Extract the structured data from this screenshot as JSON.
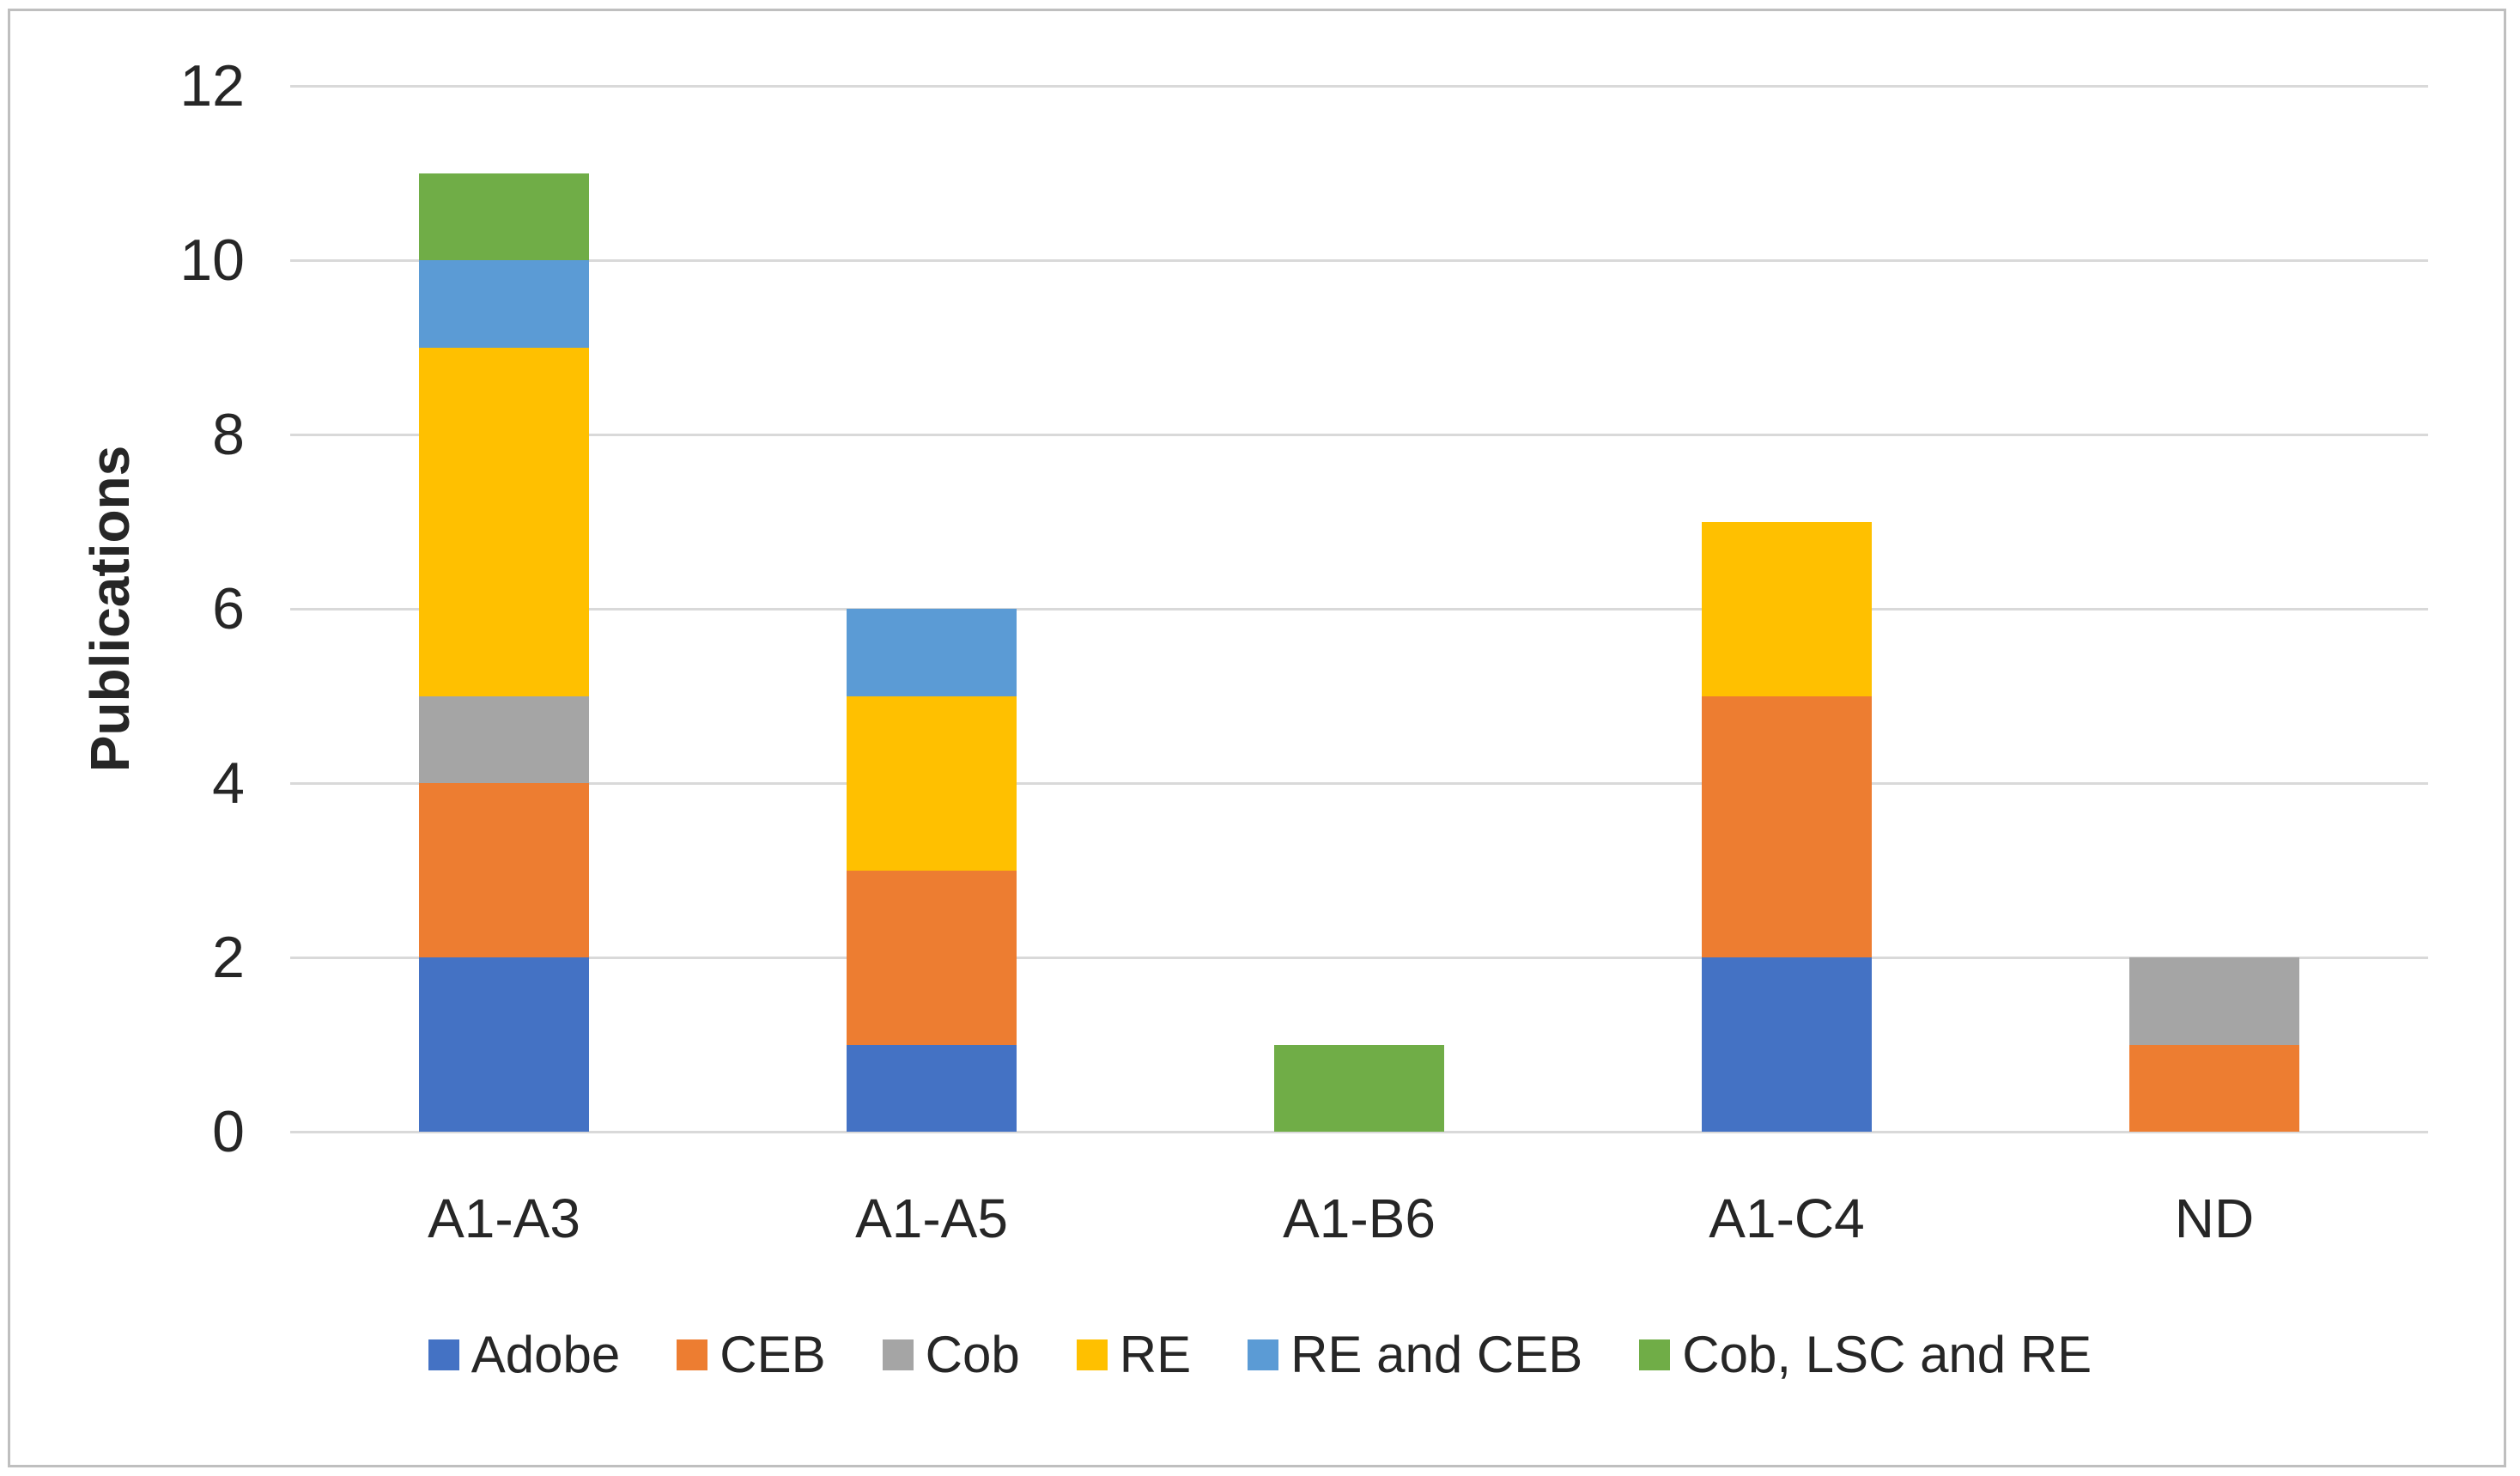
{
  "chart_data": {
    "type": "bar",
    "stacked": true,
    "title": "",
    "xlabel": "",
    "ylabel": "Publications",
    "ylim": [
      0,
      12
    ],
    "yticks": [
      0,
      2,
      4,
      6,
      8,
      10,
      12
    ],
    "grid": "horizontal",
    "legend_position": "bottom",
    "categories": [
      "A1-A3",
      "A1-A5",
      "A1-B6",
      "A1-C4",
      "ND"
    ],
    "series": [
      {
        "name": "Adobe",
        "color": "#4472C4",
        "values": [
          2,
          1,
          0,
          2,
          0
        ]
      },
      {
        "name": "CEB",
        "color": "#ED7D31",
        "values": [
          2,
          2,
          0,
          3,
          1
        ]
      },
      {
        "name": "Cob",
        "color": "#A5A5A5",
        "values": [
          1,
          0,
          0,
          0,
          1
        ]
      },
      {
        "name": "RE",
        "color": "#FFC000",
        "values": [
          4,
          2,
          0,
          2,
          0
        ]
      },
      {
        "name": "RE and CEB",
        "color": "#5B9BD5",
        "values": [
          1,
          1,
          0,
          0,
          0
        ]
      },
      {
        "name": "Cob, LSC and RE",
        "color": "#70AD47",
        "values": [
          1,
          0,
          1,
          0,
          0
        ]
      }
    ],
    "totals": [
      11,
      6,
      1,
      7,
      2
    ]
  },
  "frame": {
    "background_color": "#FFFFFF",
    "border_color": "#BFBFBF",
    "gridline_color": "#D9D9D9",
    "text_color": "#262626"
  }
}
